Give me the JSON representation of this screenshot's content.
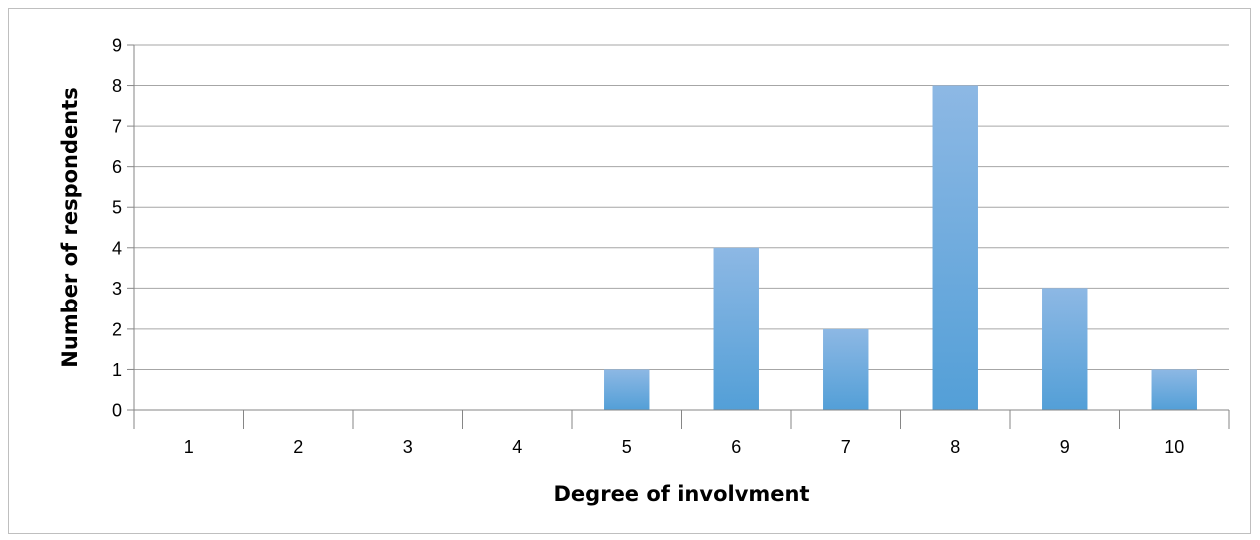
{
  "chart_data": {
    "type": "bar",
    "title": "",
    "xlabel": "Degree of involvment",
    "ylabel": "Number of respondents",
    "categories": [
      "1",
      "2",
      "3",
      "4",
      "5",
      "6",
      "7",
      "8",
      "9",
      "10"
    ],
    "values": [
      0,
      0,
      0,
      0,
      1,
      4,
      2,
      8,
      3,
      1
    ],
    "ylim": [
      0,
      9
    ],
    "yticks": [
      "0",
      "1",
      "2",
      "3",
      "4",
      "5",
      "6",
      "7",
      "8",
      "9"
    ],
    "grid": true,
    "legend": "none",
    "colors": {
      "bar_top": "#8db8e4",
      "bar_bottom": "#539fd7",
      "grid": "#a6a6a6",
      "axis": "#868686",
      "frame": "#bfbfbf"
    }
  }
}
